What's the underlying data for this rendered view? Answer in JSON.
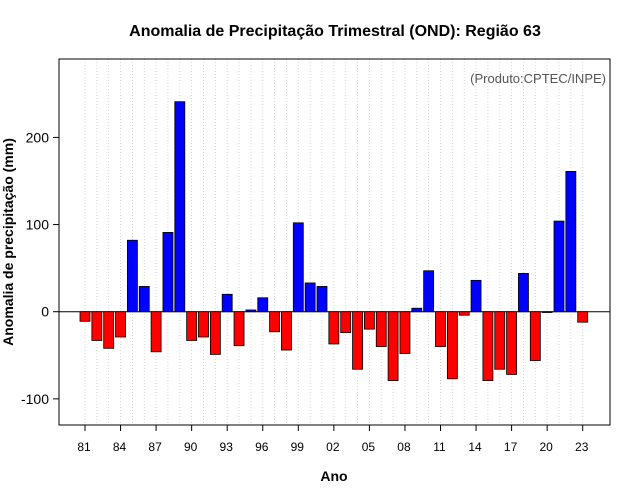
{
  "chart_data": {
    "type": "bar",
    "title": "Anomalia de Precipitação Trimestral (OND): Região 63",
    "xlabel": "Ano",
    "ylabel": "Anomalia de precipitação (mm)",
    "annotation": "(Produto:CPTEC/INPE)",
    "ylim": [
      -130,
      290
    ],
    "yticks": [
      -100,
      0,
      100,
      200
    ],
    "x_tick_labels": [
      "81",
      "84",
      "87",
      "90",
      "93",
      "96",
      "99",
      "02",
      "05",
      "08",
      "11",
      "14",
      "17",
      "20",
      "23"
    ],
    "x_tick_label_every": 3,
    "colors": {
      "positive": "#0000ff",
      "negative": "#ff0000"
    },
    "years": [
      1981,
      1982,
      1983,
      1984,
      1985,
      1986,
      1987,
      1988,
      1989,
      1990,
      1991,
      1992,
      1993,
      1994,
      1995,
      1996,
      1997,
      1998,
      1999,
      2000,
      2001,
      2002,
      2003,
      2004,
      2005,
      2006,
      2007,
      2008,
      2009,
      2010,
      2011,
      2012,
      2013,
      2014,
      2015,
      2016,
      2017,
      2018,
      2019,
      2020,
      2021,
      2022,
      2023
    ],
    "values": [
      -11,
      -33,
      -42,
      -29,
      82,
      29,
      -46,
      91,
      241,
      -33,
      -29,
      -49,
      20,
      -39,
      2,
      16,
      -23,
      -44,
      102,
      33,
      29,
      -37,
      -24,
      -66,
      -20,
      -40,
      -79,
      -48,
      4,
      47,
      -40,
      -77,
      -4,
      36,
      -79,
      -66,
      -72,
      44,
      -56,
      0,
      104,
      161,
      -12
    ]
  }
}
